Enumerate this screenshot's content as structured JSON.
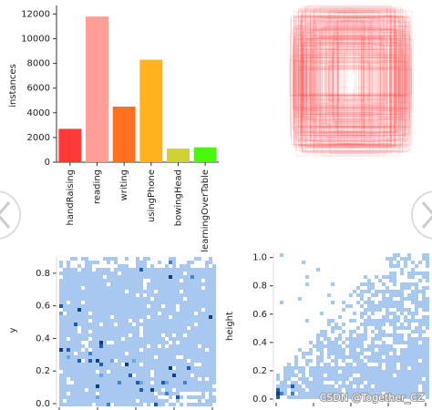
{
  "chart_data": [
    {
      "type": "bar",
      "ylabel": "instances",
      "categories": [
        "handRaising",
        "reading",
        "writing",
        "usingPhone",
        "bowingHead",
        "learningOverTable"
      ],
      "values": [
        2700,
        11800,
        4500,
        8300,
        1100,
        1200
      ],
      "colors": [
        "#ff3838",
        "#ff9d97",
        "#ff701f",
        "#ffb21d",
        "#cfd231",
        "#48f90a"
      ],
      "ylim": [
        0,
        12400
      ],
      "yticks": [
        0,
        2000,
        4000,
        6000,
        8000,
        10000,
        12000
      ]
    },
    {
      "type": "hist2d",
      "ylabel": "y",
      "color": "#a9c8ef",
      "ylim": [
        0,
        0.9
      ],
      "yticks": [
        {
          "value": 0,
          "label": "0.0"
        },
        0.2,
        0.4,
        0.6,
        0.8
      ]
    },
    {
      "type": "hist2d",
      "ylabel": "height",
      "color": "#a9c8ef",
      "ylim": [
        0,
        1.03
      ],
      "yticks": [
        {
          "value": 0,
          "label": "0.0"
        },
        0.2,
        0.4,
        0.6,
        0.8,
        {
          "value": 1,
          "label": "1.0"
        }
      ]
    }
  ],
  "watermark": "CSDN @Together_CZ"
}
